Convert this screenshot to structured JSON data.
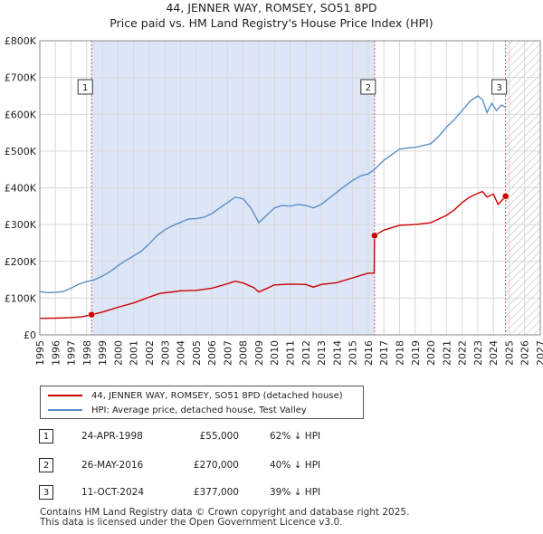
{
  "header": {
    "title": "44, JENNER WAY, ROMSEY, SO51 8PD",
    "subtitle": "Price paid vs. HM Land Registry's House Price Index (HPI)"
  },
  "colors": {
    "hpi": "#5b8ec8",
    "price": "#cc0000",
    "highlight": "#dde6f7",
    "marker_line": "#e05050"
  },
  "chart_data": {
    "type": "line",
    "xlabel": "",
    "ylabel": "",
    "xlim": [
      1995,
      2027
    ],
    "ylim": [
      0,
      800000
    ],
    "x_ticks": [
      "1995",
      "1996",
      "1997",
      "1998",
      "1999",
      "2000",
      "2001",
      "2002",
      "2003",
      "2004",
      "2005",
      "2006",
      "2007",
      "2008",
      "2009",
      "2010",
      "2011",
      "2012",
      "2013",
      "2014",
      "2015",
      "2016",
      "2017",
      "2018",
      "2019",
      "2020",
      "2021",
      "2022",
      "2023",
      "2024",
      "2025",
      "2026",
      "2027"
    ],
    "y_ticks": [
      {
        "value": 0,
        "label": "£0"
      },
      {
        "value": 100000,
        "label": "£100K"
      },
      {
        "value": 200000,
        "label": "£200K"
      },
      {
        "value": 300000,
        "label": "£300K"
      },
      {
        "value": 400000,
        "label": "£400K"
      },
      {
        "value": 500000,
        "label": "£500K"
      },
      {
        "value": 600000,
        "label": "£600K"
      },
      {
        "value": 700000,
        "label": "£700K"
      },
      {
        "value": 800000,
        "label": "£800K"
      }
    ],
    "highlight_period": {
      "from": 1998.31,
      "to": 2016.4
    },
    "future_hatch_from": 2024.78,
    "series": [
      {
        "name": "44, JENNER WAY, ROMSEY, SO51 8PD (detached house)",
        "color": "#cc0000",
        "points": [
          [
            1995.0,
            45000
          ],
          [
            1996.0,
            45500
          ],
          [
            1997.0,
            47000
          ],
          [
            1997.7,
            49500
          ],
          [
            1998.31,
            55000
          ],
          [
            1999.0,
            62000
          ],
          [
            2000.0,
            75000
          ],
          [
            2001.0,
            87000
          ],
          [
            2002.0,
            103000
          ],
          [
            2002.7,
            113000
          ],
          [
            2003.5,
            117000
          ],
          [
            2004.0,
            120000
          ],
          [
            2005.0,
            121000
          ],
          [
            2006.0,
            127000
          ],
          [
            2007.0,
            139000
          ],
          [
            2007.5,
            146000
          ],
          [
            2008.0,
            141000
          ],
          [
            2008.7,
            128000
          ],
          [
            2009.0,
            117000
          ],
          [
            2009.5,
            126000
          ],
          [
            2010.0,
            136000
          ],
          [
            2011.0,
            138000
          ],
          [
            2012.0,
            137000
          ],
          [
            2012.5,
            130000
          ],
          [
            2013.0,
            137000
          ],
          [
            2014.0,
            142000
          ],
          [
            2015.0,
            155000
          ],
          [
            2016.0,
            168000
          ],
          [
            2016.38,
            168000
          ],
          [
            2016.4,
            270000
          ],
          [
            2017.0,
            285000
          ],
          [
            2018.0,
            298000
          ],
          [
            2019.0,
            300000
          ],
          [
            2020.0,
            305000
          ],
          [
            2020.5,
            315000
          ],
          [
            2021.0,
            325000
          ],
          [
            2021.5,
            340000
          ],
          [
            2022.0,
            360000
          ],
          [
            2022.5,
            375000
          ],
          [
            2023.0,
            385000
          ],
          [
            2023.3,
            390000
          ],
          [
            2023.6,
            375000
          ],
          [
            2024.0,
            383000
          ],
          [
            2024.3,
            355000
          ],
          [
            2024.6,
            368000
          ],
          [
            2024.78,
            377000
          ]
        ]
      },
      {
        "name": "HPI: Average price, detached house, Test Valley",
        "color": "#5b8ec8",
        "points": [
          [
            1995.0,
            118000
          ],
          [
            1995.5,
            115000
          ],
          [
            1996.0,
            116000
          ],
          [
            1996.5,
            118000
          ],
          [
            1997.0,
            127000
          ],
          [
            1997.5,
            138000
          ],
          [
            1998.0,
            145000
          ],
          [
            1998.5,
            150000
          ],
          [
            1999.0,
            160000
          ],
          [
            1999.5,
            172000
          ],
          [
            2000.0,
            188000
          ],
          [
            2000.5,
            202000
          ],
          [
            2001.0,
            215000
          ],
          [
            2001.5,
            228000
          ],
          [
            2002.0,
            248000
          ],
          [
            2002.5,
            270000
          ],
          [
            2003.0,
            286000
          ],
          [
            2003.5,
            297000
          ],
          [
            2004.0,
            306000
          ],
          [
            2004.5,
            315000
          ],
          [
            2005.0,
            316000
          ],
          [
            2005.5,
            320000
          ],
          [
            2006.0,
            330000
          ],
          [
            2006.5,
            345000
          ],
          [
            2007.0,
            360000
          ],
          [
            2007.5,
            375000
          ],
          [
            2008.0,
            370000
          ],
          [
            2008.5,
            345000
          ],
          [
            2009.0,
            305000
          ],
          [
            2009.5,
            325000
          ],
          [
            2010.0,
            345000
          ],
          [
            2010.5,
            352000
          ],
          [
            2011.0,
            350000
          ],
          [
            2011.5,
            355000
          ],
          [
            2012.0,
            352000
          ],
          [
            2012.5,
            345000
          ],
          [
            2013.0,
            355000
          ],
          [
            2013.5,
            372000
          ],
          [
            2014.0,
            388000
          ],
          [
            2014.5,
            405000
          ],
          [
            2015.0,
            420000
          ],
          [
            2015.5,
            432000
          ],
          [
            2016.0,
            438000
          ],
          [
            2016.4,
            450000
          ],
          [
            2017.0,
            475000
          ],
          [
            2017.5,
            490000
          ],
          [
            2018.0,
            505000
          ],
          [
            2018.5,
            508000
          ],
          [
            2019.0,
            510000
          ],
          [
            2019.5,
            515000
          ],
          [
            2020.0,
            520000
          ],
          [
            2020.5,
            540000
          ],
          [
            2021.0,
            565000
          ],
          [
            2021.5,
            585000
          ],
          [
            2022.0,
            610000
          ],
          [
            2022.5,
            635000
          ],
          [
            2023.0,
            650000
          ],
          [
            2023.3,
            640000
          ],
          [
            2023.6,
            605000
          ],
          [
            2023.9,
            630000
          ],
          [
            2024.2,
            610000
          ],
          [
            2024.5,
            625000
          ],
          [
            2024.78,
            620000
          ]
        ]
      }
    ],
    "sales": [
      {
        "id": "1",
        "date": "24-APR-1998",
        "x": 1998.31,
        "price": "£55,000",
        "value": 55000,
        "hpi": "62% ↓ HPI"
      },
      {
        "id": "2",
        "date": "26-MAY-2016",
        "x": 2016.4,
        "price": "£270,000",
        "value": 270000,
        "hpi": "40% ↓ HPI"
      },
      {
        "id": "3",
        "date": "11-OCT-2024",
        "x": 2024.78,
        "price": "£377,000",
        "value": 377000,
        "hpi": "39% ↓ HPI"
      }
    ]
  },
  "legend": {
    "items": [
      {
        "label": "44, JENNER WAY, ROMSEY, SO51 8PD (detached house)"
      },
      {
        "label": "HPI: Average price, detached house, Test Valley"
      }
    ]
  },
  "table": {
    "rows": [
      {
        "num": "1",
        "date": "24-APR-1998",
        "price": "£55,000",
        "hpi": "62% ↓ HPI"
      },
      {
        "num": "2",
        "date": "26-MAY-2016",
        "price": "£270,000",
        "hpi": "40% ↓ HPI"
      },
      {
        "num": "3",
        "date": "11-OCT-2024",
        "price": "£377,000",
        "hpi": "39% ↓ HPI"
      }
    ]
  },
  "footer": {
    "line1": "Contains HM Land Registry data © Crown copyright and database right 2025.",
    "line2": "This data is licensed under the Open Government Licence v3.0."
  }
}
